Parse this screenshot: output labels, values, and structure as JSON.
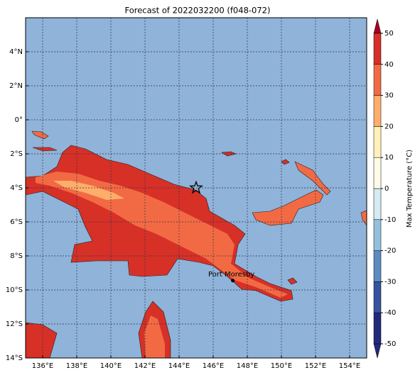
{
  "map": {
    "title": "Forecast of 2022032200 (f048-072)",
    "xlim": [
      135,
      155
    ],
    "ylim": [
      -14,
      6
    ],
    "xticks": [
      {
        "value": 136,
        "label": "136°E"
      },
      {
        "value": 138,
        "label": "138°E"
      },
      {
        "value": 140,
        "label": "140°E"
      },
      {
        "value": 142,
        "label": "142°E"
      },
      {
        "value": 144,
        "label": "144°E"
      },
      {
        "value": 146,
        "label": "146°E"
      },
      {
        "value": 148,
        "label": "148°E"
      },
      {
        "value": 150,
        "label": "150°E"
      },
      {
        "value": 152,
        "label": "152°E"
      },
      {
        "value": 154,
        "label": "154°E"
      }
    ],
    "yticks": [
      {
        "value": -14,
        "label": "14°S"
      },
      {
        "value": -12,
        "label": "12°S"
      },
      {
        "value": -10,
        "label": "10°S"
      },
      {
        "value": -8,
        "label": "8°S"
      },
      {
        "value": -6,
        "label": "6°S"
      },
      {
        "value": -4,
        "label": "4°S"
      },
      {
        "value": -2,
        "label": "2°S"
      },
      {
        "value": 0,
        "label": "0°"
      },
      {
        "value": 2,
        "label": "2°N"
      },
      {
        "value": 4,
        "label": "4°N"
      }
    ],
    "grid": true,
    "ocean_color": "#8fb3d9",
    "star": {
      "lon": 145,
      "lat": -4
    },
    "city": {
      "name": "Port Moresby",
      "lon": 147.15,
      "lat": -9.45
    }
  },
  "colorbar": {
    "label": "Max Temperature (°C)",
    "ticks": [
      -50,
      -40,
      -30,
      -20,
      -10,
      0,
      10,
      20,
      30,
      40,
      50
    ],
    "colors": [
      "#23297a",
      "#3553a0",
      "#5b8bc0",
      "#94c0dd",
      "#d4ebf3",
      "#fdfbe8",
      "#fff1b8",
      "#fdae6b",
      "#f26a44",
      "#d73027",
      "#a50026"
    ]
  }
}
